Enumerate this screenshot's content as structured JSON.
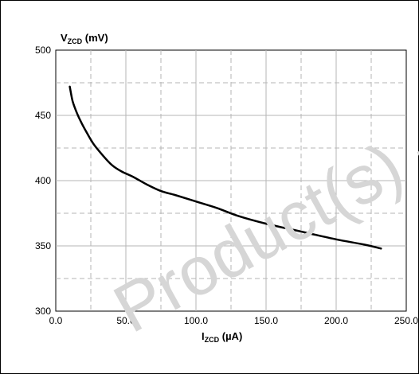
{
  "chart_data": {
    "type": "line",
    "ylabel_main": "V",
    "ylabel_sub": "ZCD",
    "ylabel_unit": " (mV)",
    "xlabel_main": "I",
    "xlabel_sub": "ZCD",
    "xlabel_unit": " (µA)",
    "xlim": [
      0,
      250
    ],
    "ylim": [
      300,
      500
    ],
    "x_ticks": [
      "0.0",
      "50.0",
      "100.0",
      "150.0",
      "200.0",
      "250.0"
    ],
    "y_ticks": [
      "300",
      "350",
      "400",
      "450",
      "500"
    ],
    "grid": true,
    "series": [
      {
        "x": [
          10,
          12,
          15,
          18,
          22,
          27,
          33,
          40,
          47,
          55,
          65,
          75,
          85,
          100,
          115,
          130,
          150,
          175,
          200,
          220,
          232
        ],
        "y": [
          472,
          461,
          452,
          445,
          437,
          428,
          420,
          412,
          407,
          403,
          397,
          392,
          389,
          384,
          379,
          373,
          367,
          361,
          355,
          351,
          348
        ],
        "color": "#000000"
      }
    ],
    "watermark": "Product(s) - Ob"
  }
}
